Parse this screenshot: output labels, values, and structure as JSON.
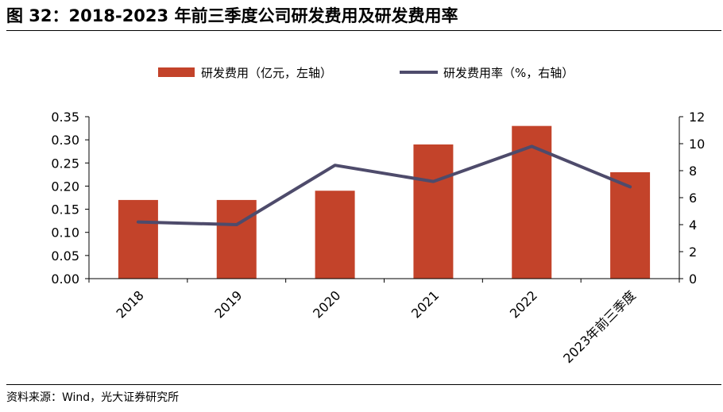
{
  "figure": {
    "title": "图 32：2018-2023 年前三季度公司研发费用及研发费用率",
    "source": "资料来源：Wind，光大证券研究所"
  },
  "chart_data": {
    "type": "bar",
    "categories": [
      "2018",
      "2019",
      "2020",
      "2021",
      "2022",
      "2023年前三季度"
    ],
    "series": [
      {
        "name": "研发费用（亿元，左轴）",
        "type": "bar",
        "axis": "left",
        "color": "#C3432A",
        "values": [
          0.17,
          0.17,
          0.19,
          0.29,
          0.33,
          0.23
        ]
      },
      {
        "name": "研发费用率（%，右轴）",
        "type": "line",
        "axis": "right",
        "color": "#4E4B6B",
        "values": [
          4.2,
          4.0,
          8.4,
          7.2,
          9.8,
          6.8
        ]
      }
    ],
    "left_axis": {
      "ylim": [
        0,
        0.35
      ],
      "ticks": [
        "0.00",
        "0.05",
        "0.10",
        "0.15",
        "0.20",
        "0.25",
        "0.30",
        "0.35"
      ]
    },
    "right_axis": {
      "ylim": [
        0,
        12
      ],
      "ticks": [
        "0",
        "2",
        "4",
        "6",
        "8",
        "10",
        "12"
      ]
    },
    "legend_position": "top-center",
    "grid": false
  }
}
